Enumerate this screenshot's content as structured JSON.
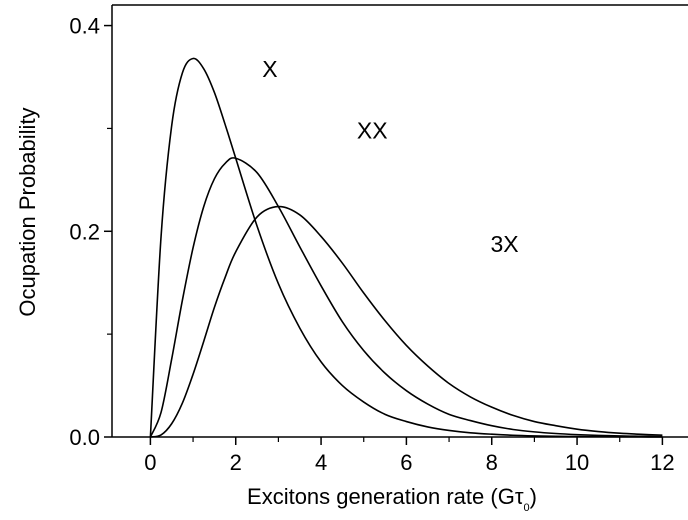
{
  "chart_data": {
    "type": "line",
    "title": "",
    "xlabel": "Excitons generation rate (Gτ0)",
    "xlabel_parts": {
      "prefix": "Excitons generation rate (G",
      "sym": "τ",
      "sub": "0",
      "suffix": ")"
    },
    "ylabel": "Ocupation Probability",
    "xlim": [
      -0.9,
      12.6
    ],
    "ylim": [
      0,
      0.42
    ],
    "xticks": [
      0,
      2,
      4,
      6,
      8,
      10,
      12
    ],
    "xtick_labels": [
      "0",
      "2",
      "4",
      "6",
      "8",
      "10",
      "12"
    ],
    "yticks": [
      0.0,
      0.2,
      0.4
    ],
    "ytick_labels": [
      "0.0",
      "0.2",
      "0.4"
    ],
    "grid": false,
    "x": [
      0,
      0.25,
      0.5,
      0.75,
      1,
      1.25,
      1.5,
      1.75,
      2,
      2.5,
      3,
      3.5,
      4,
      4.5,
      5,
      5.5,
      6,
      6.5,
      7,
      7.5,
      8,
      8.5,
      9,
      9.5,
      10,
      10.5,
      11,
      11.5,
      12
    ],
    "series": [
      {
        "name": "X",
        "values": [
          0,
          0.195,
          0.303,
          0.354,
          0.368,
          0.358,
          0.335,
          0.304,
          0.271,
          0.205,
          0.149,
          0.106,
          0.073,
          0.05,
          0.034,
          0.022,
          0.015,
          0.0098,
          0.0064,
          0.0041,
          0.0027,
          0.0017,
          0.0011,
          0.0007,
          0.00045,
          0.0003,
          0.0002,
          0.00013,
          8e-05
        ]
      },
      {
        "name": "XX",
        "values": [
          0,
          0.024,
          0.076,
          0.133,
          0.184,
          0.224,
          0.251,
          0.266,
          0.271,
          0.257,
          0.224,
          0.185,
          0.147,
          0.112,
          0.084,
          0.062,
          0.045,
          0.032,
          0.022,
          0.016,
          0.011,
          0.0073,
          0.005,
          0.0034,
          0.0023,
          0.0015,
          0.001,
          0.0007,
          0.0005
        ]
      },
      {
        "name": "3X",
        "values": [
          0,
          0.002,
          0.013,
          0.033,
          0.061,
          0.093,
          0.126,
          0.155,
          0.18,
          0.214,
          0.224,
          0.216,
          0.195,
          0.169,
          0.14,
          0.113,
          0.089,
          0.069,
          0.052,
          0.039,
          0.029,
          0.021,
          0.015,
          0.011,
          0.0076,
          0.0053,
          0.0037,
          0.0026,
          0.0018
        ]
      }
    ],
    "curve_labels": [
      {
        "text": "X",
        "x": 2.8,
        "y": 0.35
      },
      {
        "text": "XX",
        "x": 5.2,
        "y": 0.29
      },
      {
        "text": "3X",
        "x": 8.3,
        "y": 0.18
      }
    ]
  }
}
